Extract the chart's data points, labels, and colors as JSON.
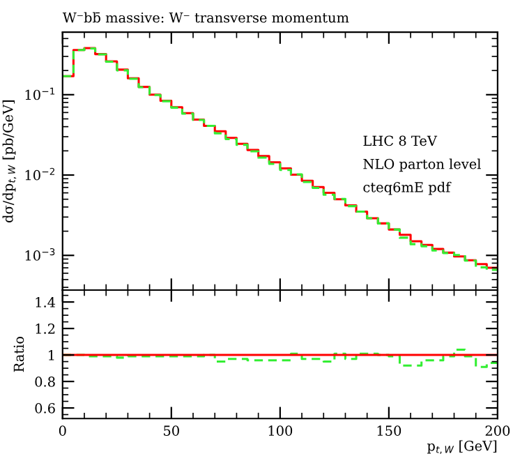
{
  "chart_data": [
    {
      "type": "histogram",
      "title": "W⁻bb̄ massive: W⁻ transverse momentum",
      "ylabel": "dσ/dp$_{t,W}$ [pb/GeV]",
      "log": "y",
      "xlim": [
        0,
        200
      ],
      "ylim": [
        0.00037,
        0.6
      ],
      "yticks": [
        {
          "value": 0.001,
          "label": "10$^{−3}$"
        },
        {
          "value": 0.01,
          "label": "10$^{−2}$"
        },
        {
          "value": 0.1,
          "label": "10$^{−1}$"
        }
      ],
      "xticks": [
        0,
        50,
        100,
        150,
        200
      ],
      "tick_labels": "y",
      "grid": false,
      "annotations": [
        "LHC 8 TeV",
        "NLO parton level",
        "cteq6mE pdf"
      ],
      "bins": [
        0,
        5,
        10,
        15,
        20,
        25,
        30,
        35,
        40,
        45,
        50,
        55,
        60,
        65,
        70,
        75,
        80,
        85,
        90,
        95,
        100,
        105,
        110,
        115,
        120,
        125,
        130,
        135,
        140,
        145,
        150,
        155,
        160,
        165,
        170,
        175,
        180,
        185,
        190,
        195,
        200
      ],
      "series": [
        {
          "color": "#ff0000",
          "line_style": "solid",
          "values": [
            0.17,
            0.36,
            0.38,
            0.32,
            0.26,
            0.205,
            0.16,
            0.125,
            0.1,
            0.084,
            0.07,
            0.059,
            0.049,
            0.041,
            0.035,
            0.029,
            0.0245,
            0.0205,
            0.0172,
            0.0144,
            0.0121,
            0.0101,
            0.0085,
            0.0071,
            0.006,
            0.005,
            0.0042,
            0.0035,
            0.0029,
            0.0025,
            0.0021,
            0.0018,
            0.0015,
            0.00135,
            0.0012,
            0.00108,
            0.00097,
            0.00087,
            0.00078,
            0.0007
          ]
        },
        {
          "color": "#33ee33",
          "line_style": "dashed",
          "values": [
            0.17,
            0.36,
            0.376,
            0.317,
            0.257,
            0.201,
            0.158,
            0.124,
            0.099,
            0.083,
            0.069,
            0.058,
            0.0485,
            0.041,
            0.033,
            0.028,
            0.0238,
            0.0197,
            0.0165,
            0.0138,
            0.0116,
            0.0102,
            0.0082,
            0.0069,
            0.0057,
            0.00505,
            0.0041,
            0.0035,
            0.0029,
            0.0025,
            0.0021,
            0.00166,
            0.00138,
            0.0013,
            0.00115,
            0.00107,
            0.00101,
            0.00086,
            0.00071,
            0.00066
          ]
        }
      ]
    },
    {
      "type": "histogram",
      "ylabel": "Ratio",
      "xlabel": "p$_{t,W}$ [GeV]",
      "xlim": [
        0,
        200
      ],
      "ylim": [
        0.52,
        1.49
      ],
      "xticks": [
        0,
        50,
        100,
        150,
        200
      ],
      "yticks": [
        {
          "value": 0.6,
          "label": "0.6"
        },
        {
          "value": 0.8,
          "label": "0.8"
        },
        {
          "value": 1,
          "label": "1"
        },
        {
          "value": 1.2,
          "label": "1.2"
        },
        {
          "value": 1.4,
          "label": "1.4"
        }
      ],
      "grid": false,
      "ref_lines": [
        {
          "axis": "y",
          "value": 1,
          "color": "#ff0000",
          "line_style": "solid"
        }
      ],
      "bins": [
        0,
        5,
        10,
        15,
        20,
        25,
        30,
        35,
        40,
        45,
        50,
        55,
        60,
        65,
        70,
        75,
        80,
        85,
        90,
        95,
        100,
        105,
        110,
        115,
        120,
        125,
        130,
        135,
        140,
        145,
        150,
        155,
        160,
        165,
        170,
        175,
        180,
        185,
        190,
        195,
        200
      ],
      "series": [
        {
          "color": "#33ee33",
          "line_style": "dashed",
          "values": [
            1.0,
            1.0,
            0.99,
            0.99,
            0.99,
            0.98,
            0.99,
            0.99,
            0.99,
            0.99,
            0.99,
            0.99,
            0.99,
            1.0,
            0.95,
            0.97,
            0.97,
            0.96,
            0.96,
            0.96,
            0.96,
            1.01,
            0.97,
            0.97,
            0.95,
            1.01,
            0.97,
            1.01,
            1.01,
            1.0,
            0.99,
            0.92,
            0.92,
            0.96,
            0.96,
            0.99,
            1.04,
            0.99,
            0.91,
            0.94
          ]
        }
      ]
    }
  ]
}
